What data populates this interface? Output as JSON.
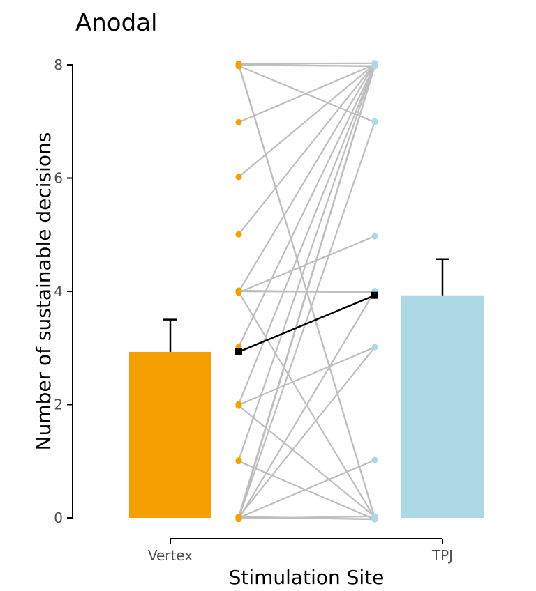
{
  "chart_data": {
    "type": "bar",
    "title": "Anodal",
    "xlabel": "Stimulation Site",
    "ylabel": "Number of sustainable decisions",
    "categories": [
      "Vertex",
      "TPJ"
    ],
    "yticks": [
      "0",
      "2",
      "4",
      "6",
      "8"
    ],
    "ylim": [
      0,
      8
    ],
    "grid": false,
    "series": [
      {
        "values": [
          2.93,
          3.93
        ],
        "error_upper": [
          3.5,
          4.57
        ],
        "colors": [
          "#f5a000",
          "#add8e6"
        ]
      }
    ],
    "mean_line": {
      "values": [
        2.93,
        3.93
      ],
      "color": "#000000"
    },
    "paired_lines": {
      "color": "#bebebe",
      "pairs": [
        [
          8,
          8
        ],
        [
          8,
          8
        ],
        [
          8,
          8
        ],
        [
          8,
          7
        ],
        [
          8,
          0
        ],
        [
          8,
          0
        ],
        [
          7,
          8
        ],
        [
          6,
          8
        ],
        [
          5,
          8
        ],
        [
          4,
          8
        ],
        [
          4,
          5
        ],
        [
          4,
          4
        ],
        [
          4,
          4
        ],
        [
          4,
          0
        ],
        [
          3,
          8
        ],
        [
          2,
          8
        ],
        [
          2,
          3
        ],
        [
          2,
          0
        ],
        [
          1,
          8
        ],
        [
          1,
          0
        ],
        [
          0,
          8
        ],
        [
          0,
          8
        ],
        [
          0,
          8
        ],
        [
          0,
          7
        ],
        [
          0,
          4
        ],
        [
          0,
          3
        ],
        [
          0,
          1
        ],
        [
          0,
          0
        ],
        [
          0,
          0
        ],
        [
          0,
          0
        ]
      ],
      "point_colors": [
        "#f5a000",
        "#add8e6"
      ]
    }
  }
}
